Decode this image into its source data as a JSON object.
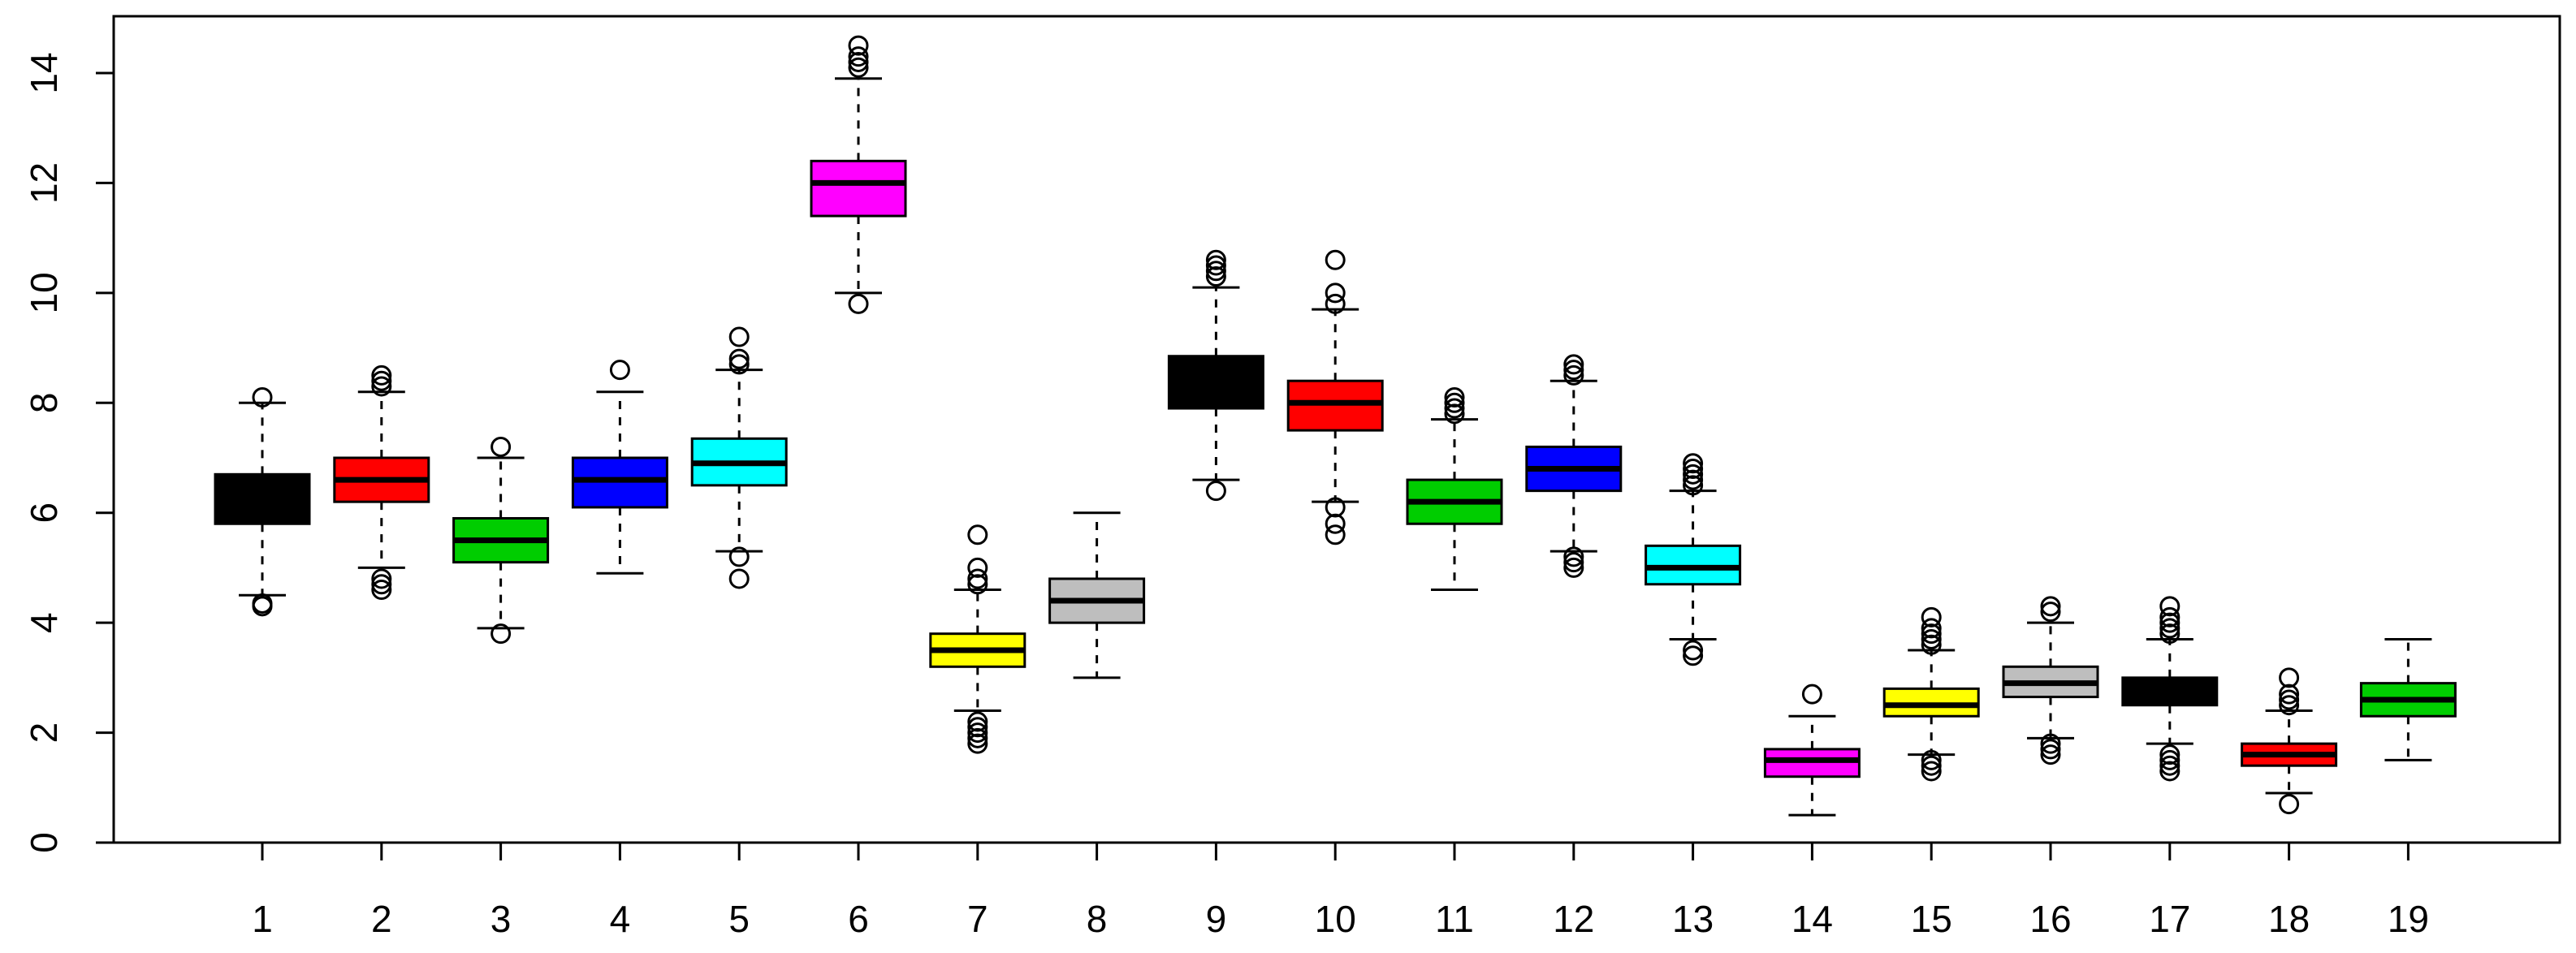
{
  "chart_data": {
    "type": "boxplot",
    "title": "",
    "xlabel": "",
    "ylabel": "",
    "ylim": [
      0,
      15
    ],
    "yticks": [
      0,
      2,
      4,
      6,
      8,
      10,
      12,
      14
    ],
    "grid": false,
    "legend": "none",
    "categories": [
      "1",
      "2",
      "3",
      "4",
      "5",
      "6",
      "7",
      "8",
      "9",
      "10",
      "11",
      "12",
      "13",
      "14",
      "15",
      "16",
      "17",
      "18",
      "19"
    ],
    "boxes": [
      {
        "label": "1",
        "color": "#000000",
        "q1": 5.8,
        "median": 6.3,
        "q3": 6.7,
        "whisker_low": 4.5,
        "whisker_high": 8.0,
        "outliers": [
          4.3,
          4.35,
          8.1
        ]
      },
      {
        "label": "2",
        "color": "#FF0000",
        "q1": 6.2,
        "median": 6.6,
        "q3": 7.0,
        "whisker_low": 5.0,
        "whisker_high": 8.2,
        "outliers": [
          4.6,
          4.7,
          4.8,
          8.3,
          8.4,
          8.5
        ]
      },
      {
        "label": "3",
        "color": "#00CD00",
        "q1": 5.1,
        "median": 5.5,
        "q3": 5.9,
        "whisker_low": 3.9,
        "whisker_high": 7.0,
        "outliers": [
          3.8,
          7.2
        ]
      },
      {
        "label": "4",
        "color": "#0000FF",
        "q1": 6.1,
        "median": 6.6,
        "q3": 7.0,
        "whisker_low": 4.9,
        "whisker_high": 8.2,
        "outliers": [
          8.6
        ]
      },
      {
        "label": "5",
        "color": "#00FFFF",
        "q1": 6.5,
        "median": 6.9,
        "q3": 7.35,
        "whisker_low": 5.3,
        "whisker_high": 8.6,
        "outliers": [
          4.8,
          5.2,
          8.7,
          8.8,
          9.2
        ]
      },
      {
        "label": "6",
        "color": "#FF00FF",
        "q1": 11.4,
        "median": 12.0,
        "q3": 12.4,
        "whisker_low": 10.0,
        "whisker_high": 13.9,
        "outliers": [
          9.8,
          14.1,
          14.2,
          14.3,
          14.5
        ]
      },
      {
        "label": "7",
        "color": "#FFFF00",
        "q1": 3.2,
        "median": 3.5,
        "q3": 3.8,
        "whisker_low": 2.4,
        "whisker_high": 4.6,
        "outliers": [
          1.8,
          1.9,
          2.0,
          2.1,
          2.2,
          4.7,
          4.8,
          5.0,
          5.6
        ]
      },
      {
        "label": "8",
        "color": "#BEBEBE",
        "q1": 4.0,
        "median": 4.4,
        "q3": 4.8,
        "whisker_low": 3.0,
        "whisker_high": 6.0,
        "outliers": []
      },
      {
        "label": "9",
        "color": "#000000",
        "q1": 7.9,
        "median": 8.3,
        "q3": 8.85,
        "whisker_low": 6.6,
        "whisker_high": 10.1,
        "outliers": [
          6.4,
          10.3,
          10.4,
          10.5,
          10.6
        ]
      },
      {
        "label": "10",
        "color": "#FF0000",
        "q1": 7.5,
        "median": 8.0,
        "q3": 8.4,
        "whisker_low": 6.2,
        "whisker_high": 9.7,
        "outliers": [
          5.6,
          5.8,
          6.1,
          9.8,
          10.0,
          10.6
        ]
      },
      {
        "label": "11",
        "color": "#00CD00",
        "q1": 5.8,
        "median": 6.2,
        "q3": 6.6,
        "whisker_low": 4.6,
        "whisker_high": 7.7,
        "outliers": [
          7.8,
          7.9,
          8.0,
          8.1
        ]
      },
      {
        "label": "12",
        "color": "#0000FF",
        "q1": 6.4,
        "median": 6.8,
        "q3": 7.2,
        "whisker_low": 5.3,
        "whisker_high": 8.4,
        "outliers": [
          5.0,
          5.1,
          5.2,
          8.5,
          8.6,
          8.7
        ]
      },
      {
        "label": "13",
        "color": "#00FFFF",
        "q1": 4.7,
        "median": 5.0,
        "q3": 5.4,
        "whisker_low": 3.7,
        "whisker_high": 6.4,
        "outliers": [
          3.4,
          3.5,
          6.5,
          6.6,
          6.7,
          6.8,
          6.9
        ]
      },
      {
        "label": "14",
        "color": "#FF00FF",
        "q1": 1.2,
        "median": 1.5,
        "q3": 1.7,
        "whisker_low": 0.5,
        "whisker_high": 2.3,
        "outliers": [
          2.7
        ]
      },
      {
        "label": "15",
        "color": "#FFFF00",
        "q1": 2.3,
        "median": 2.5,
        "q3": 2.8,
        "whisker_low": 1.6,
        "whisker_high": 3.5,
        "outliers": [
          1.3,
          1.4,
          1.5,
          3.6,
          3.7,
          3.8,
          3.9,
          4.1
        ]
      },
      {
        "label": "16",
        "color": "#BEBEBE",
        "q1": 2.65,
        "median": 2.9,
        "q3": 3.2,
        "whisker_low": 1.9,
        "whisker_high": 4.0,
        "outliers": [
          1.6,
          1.7,
          1.8,
          4.2,
          4.3
        ]
      },
      {
        "label": "17",
        "color": "#000000",
        "q1": 2.5,
        "median": 2.75,
        "q3": 3.0,
        "whisker_low": 1.8,
        "whisker_high": 3.7,
        "outliers": [
          1.3,
          1.4,
          1.5,
          1.6,
          3.8,
          3.9,
          4.0,
          4.1,
          4.3
        ]
      },
      {
        "label": "18",
        "color": "#FF0000",
        "q1": 1.4,
        "median": 1.6,
        "q3": 1.8,
        "whisker_low": 0.9,
        "whisker_high": 2.4,
        "outliers": [
          0.7,
          2.5,
          2.6,
          2.7,
          3.0
        ]
      },
      {
        "label": "19",
        "color": "#00CD00",
        "q1": 2.3,
        "median": 2.6,
        "q3": 2.9,
        "whisker_low": 1.5,
        "whisker_high": 3.7,
        "outliers": []
      }
    ]
  }
}
